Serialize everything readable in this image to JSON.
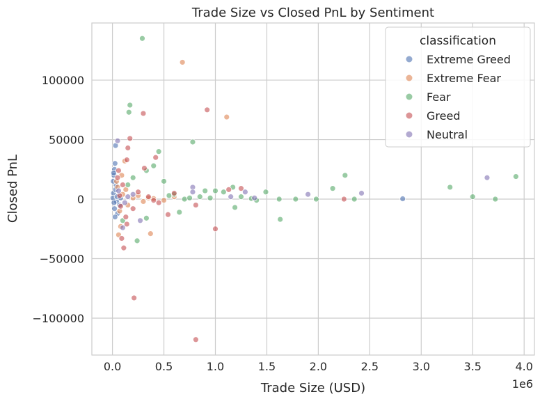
{
  "chart_data": {
    "type": "scatter",
    "title": "Trade Size vs Closed PnL by Sentiment",
    "xlabel": "Trade Size (USD)",
    "ylabel": "Closed PnL",
    "x_offset_label": "1e6",
    "xlim": [
      -200000,
      4100000
    ],
    "ylim": [
      -131000,
      148000
    ],
    "x_ticks": [
      0,
      500000,
      1000000,
      1500000,
      2000000,
      2500000,
      3000000,
      3500000,
      4000000
    ],
    "x_tick_labels": [
      "0.0",
      "0.5",
      "1.0",
      "1.5",
      "2.0",
      "2.5",
      "3.0",
      "3.5",
      "4.0"
    ],
    "y_ticks": [
      -100000,
      -50000,
      0,
      50000,
      100000
    ],
    "y_tick_labels": [
      "−100000",
      "−50000",
      "0",
      "50000",
      "100000"
    ],
    "grid": true,
    "legend": {
      "title": "classification",
      "placement": "top-right"
    },
    "series": [
      {
        "name": "Extreme Greed",
        "color": "#4c72b0",
        "points": [
          [
            30000,
            45000
          ],
          [
            25000,
            30000
          ],
          [
            20000,
            25000
          ],
          [
            15000,
            20000
          ],
          [
            35000,
            12000
          ],
          [
            10000,
            5000
          ],
          [
            40000,
            -2000
          ],
          [
            20000,
            -8000
          ],
          [
            50000,
            -12000
          ],
          [
            5000,
            1000
          ],
          [
            60000,
            3000
          ],
          [
            15000,
            -3000
          ],
          [
            30000,
            8000
          ],
          [
            8000,
            15000
          ],
          [
            70000,
            -5000
          ],
          [
            12000,
            22000
          ],
          [
            45000,
            2000
          ],
          [
            25000,
            -15000
          ],
          [
            80000,
            1000
          ],
          [
            2820000,
            300
          ]
        ]
      },
      {
        "name": "Extreme Fear",
        "color": "#dd8452",
        "points": [
          [
            680000,
            115000
          ],
          [
            1110000,
            69000
          ],
          [
            120000,
            32000
          ],
          [
            90000,
            20000
          ],
          [
            60000,
            -30000
          ],
          [
            370000,
            -29000
          ],
          [
            80000,
            -23000
          ],
          [
            50000,
            10000
          ],
          [
            100000,
            4000
          ],
          [
            150000,
            -5000
          ],
          [
            200000,
            1000
          ],
          [
            300000,
            -2000
          ],
          [
            250000,
            3000
          ],
          [
            400000,
            500
          ],
          [
            500000,
            -1000
          ],
          [
            600000,
            2000
          ],
          [
            40000,
            15000
          ],
          [
            70000,
            -10000
          ],
          [
            130000,
            8000
          ],
          [
            350000,
            1000
          ]
        ]
      },
      {
        "name": "Fear",
        "color": "#55a868",
        "points": [
          [
            290000,
            135000
          ],
          [
            170000,
            79000
          ],
          [
            160000,
            73000
          ],
          [
            780000,
            48000
          ],
          [
            450000,
            40000
          ],
          [
            400000,
            28000
          ],
          [
            330000,
            24000
          ],
          [
            2260000,
            20000
          ],
          [
            3920000,
            19000
          ],
          [
            2140000,
            9000
          ],
          [
            3280000,
            10000
          ],
          [
            1170000,
            10000
          ],
          [
            1490000,
            6000
          ],
          [
            3500000,
            2000
          ],
          [
            3720000,
            0
          ],
          [
            2350000,
            0
          ],
          [
            1620000,
            0
          ],
          [
            1780000,
            0
          ],
          [
            1980000,
            0
          ],
          [
            1400000,
            -1000
          ],
          [
            1630000,
            -17000
          ],
          [
            1190000,
            -7000
          ],
          [
            650000,
            -11000
          ],
          [
            330000,
            -16000
          ],
          [
            240000,
            -35000
          ],
          [
            100000,
            -18000
          ],
          [
            500000,
            15000
          ],
          [
            900000,
            7000
          ],
          [
            1000000,
            7000
          ],
          [
            1080000,
            6000
          ],
          [
            850000,
            2000
          ],
          [
            700000,
            0
          ],
          [
            550000,
            3000
          ],
          [
            950000,
            1000
          ],
          [
            1250000,
            2000
          ],
          [
            1350000,
            500
          ],
          [
            750000,
            1000
          ],
          [
            600000,
            4000
          ],
          [
            200000,
            18000
          ],
          [
            150000,
            12000
          ]
        ]
      },
      {
        "name": "Greed",
        "color": "#c44e52",
        "points": [
          [
            810000,
            -118000
          ],
          [
            210000,
            -83000
          ],
          [
            110000,
            -41000
          ],
          [
            300000,
            72000
          ],
          [
            920000,
            75000
          ],
          [
            170000,
            51000
          ],
          [
            150000,
            43000
          ],
          [
            420000,
            35000
          ],
          [
            140000,
            33000
          ],
          [
            310000,
            26000
          ],
          [
            1000000,
            -25000
          ],
          [
            140000,
            -21000
          ],
          [
            540000,
            -13000
          ],
          [
            1250000,
            9000
          ],
          [
            1130000,
            8000
          ],
          [
            2250000,
            0
          ],
          [
            810000,
            -5000
          ],
          [
            600000,
            5000
          ],
          [
            450000,
            -3000
          ],
          [
            350000,
            2000
          ],
          [
            250000,
            6000
          ],
          [
            200000,
            -8000
          ],
          [
            100000,
            12000
          ],
          [
            80000,
            -6000
          ],
          [
            50000,
            18000
          ],
          [
            60000,
            24000
          ],
          [
            130000,
            -15000
          ],
          [
            90000,
            -33000
          ],
          [
            70000,
            3000
          ],
          [
            400000,
            -1000
          ]
        ]
      },
      {
        "name": "Neutral",
        "color": "#8172b3",
        "points": [
          [
            50000,
            49000
          ],
          [
            3640000,
            18000
          ],
          [
            2420000,
            5000
          ],
          [
            1900000,
            4000
          ],
          [
            1290000,
            6000
          ],
          [
            1380000,
            1000
          ],
          [
            780000,
            10000
          ],
          [
            780000,
            6000
          ],
          [
            270000,
            -18000
          ],
          [
            100000,
            -24000
          ],
          [
            150000,
            2000
          ],
          [
            200000,
            4000
          ],
          [
            120000,
            -3000
          ],
          [
            60000,
            7000
          ],
          [
            1150000,
            2000
          ]
        ]
      }
    ]
  }
}
